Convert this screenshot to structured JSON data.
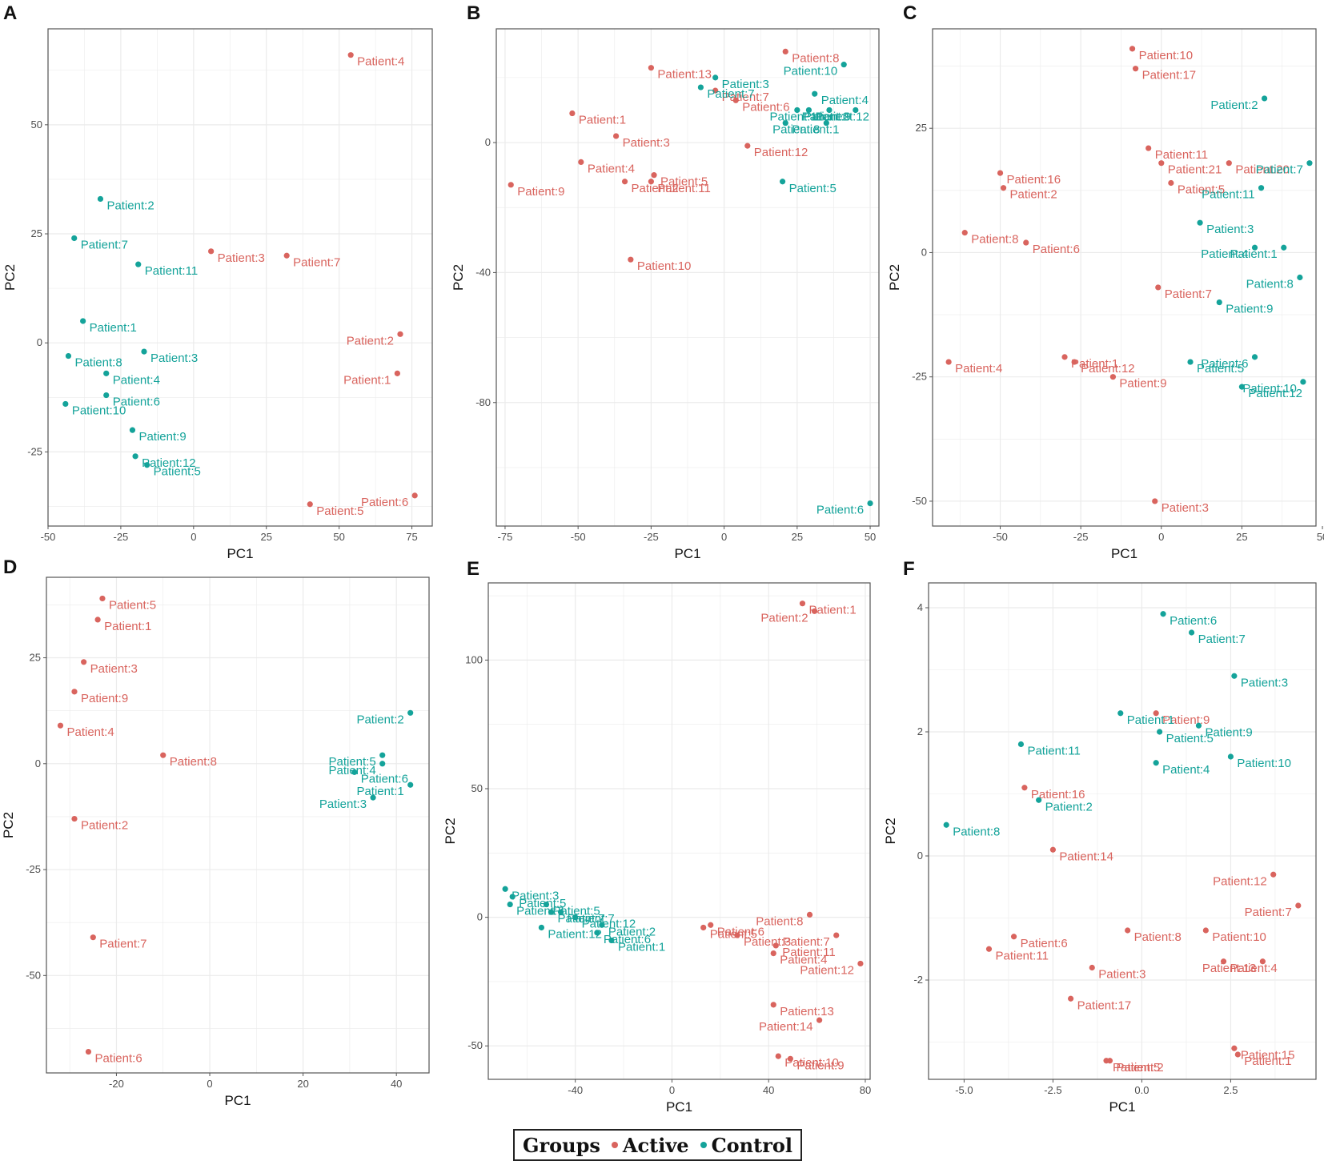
{
  "colors": {
    "active": "#d9645e",
    "control": "#14a39a",
    "grid": "#ebebeb",
    "axis": "#555555"
  },
  "legend": {
    "title": "Groups",
    "active": "Active",
    "control": "Control"
  },
  "chart_data": [
    {
      "panel": "A",
      "type": "scatter",
      "xlabel": "PC1",
      "ylabel": "PC2",
      "xlim": [
        -50,
        82
      ],
      "ylim": [
        -42,
        72
      ],
      "xticks": [
        -50,
        -25,
        0,
        25,
        50,
        75
      ],
      "yticks": [
        -25,
        0,
        25,
        50
      ],
      "points": [
        {
          "label": "Patient:4",
          "group": "active",
          "x": 54,
          "y": 66
        },
        {
          "label": "Patient:3",
          "group": "active",
          "x": 6,
          "y": 21
        },
        {
          "label": "Patient:7",
          "group": "active",
          "x": 32,
          "y": 20
        },
        {
          "label": "Patient:2",
          "group": "active",
          "x": 71,
          "y": 2
        },
        {
          "label": "Patient:1",
          "group": "active",
          "x": 70,
          "y": -7
        },
        {
          "label": "Patient:5",
          "group": "active",
          "x": 40,
          "y": -37
        },
        {
          "label": "Patient:6",
          "group": "active",
          "x": 76,
          "y": -35
        },
        {
          "label": "Patient:2",
          "group": "control",
          "x": -32,
          "y": 33
        },
        {
          "label": "Patient:7",
          "group": "control",
          "x": -41,
          "y": 24
        },
        {
          "label": "Patient:11",
          "group": "control",
          "x": -19,
          "y": 18
        },
        {
          "label": "Patient:1",
          "group": "control",
          "x": -38,
          "y": 5
        },
        {
          "label": "Patient:8",
          "group": "control",
          "x": -43,
          "y": -3
        },
        {
          "label": "Patient:3",
          "group": "control",
          "x": -17,
          "y": -2
        },
        {
          "label": "Patient:4",
          "group": "control",
          "x": -30,
          "y": -7
        },
        {
          "label": "Patient:6",
          "group": "control",
          "x": -30,
          "y": -12
        },
        {
          "label": "Patient:10",
          "group": "control",
          "x": -44,
          "y": -14
        },
        {
          "label": "Patient:9",
          "group": "control",
          "x": -21,
          "y": -20
        },
        {
          "label": "Patient:12",
          "group": "control",
          "x": -20,
          "y": -26
        },
        {
          "label": "Patient:5",
          "group": "control",
          "x": -16,
          "y": -28
        }
      ]
    },
    {
      "panel": "B",
      "type": "scatter",
      "xlabel": "PC1",
      "ylabel": "PC2",
      "xlim": [
        -78,
        53
      ],
      "ylim": [
        -118,
        35
      ],
      "xticks": [
        -75,
        -50,
        -25,
        0,
        25,
        50
      ],
      "yticks": [
        -80,
        -40,
        0
      ],
      "points": [
        {
          "label": "Patient:8",
          "group": "active",
          "x": 21,
          "y": 28
        },
        {
          "label": "Patient:13",
          "group": "active",
          "x": -25,
          "y": 23
        },
        {
          "label": "Patient:7",
          "group": "active",
          "x": -3,
          "y": 16
        },
        {
          "label": "Patient:6",
          "group": "active",
          "x": 4,
          "y": 13
        },
        {
          "label": "Patient:1",
          "group": "active",
          "x": -52,
          "y": 9
        },
        {
          "label": "Patient:3",
          "group": "active",
          "x": -37,
          "y": 2
        },
        {
          "label": "Patient:4",
          "group": "active",
          "x": -49,
          "y": -6
        },
        {
          "label": "Patient:12",
          "group": "active",
          "x": 8,
          "y": -1
        },
        {
          "label": "Patient:5",
          "group": "active",
          "x": -24,
          "y": -10
        },
        {
          "label": "Patient:2",
          "group": "active",
          "x": -34,
          "y": -12
        },
        {
          "label": "Patient:11",
          "group": "active",
          "x": -25,
          "y": -12
        },
        {
          "label": "Patient:9",
          "group": "active",
          "x": -73,
          "y": -13
        },
        {
          "label": "Patient:10",
          "group": "active",
          "x": -32,
          "y": -36
        },
        {
          "label": "Patient:10",
          "group": "control",
          "x": 41,
          "y": 24
        },
        {
          "label": "Patient:3",
          "group": "control",
          "x": -3,
          "y": 20
        },
        {
          "label": "Patient:7",
          "group": "control",
          "x": -8,
          "y": 17
        },
        {
          "label": "Patient:4",
          "group": "control",
          "x": 31,
          "y": 15
        },
        {
          "label": "Patient:2",
          "group": "control",
          "x": 45,
          "y": 10
        },
        {
          "label": "Patient:9",
          "group": "control",
          "x": 25,
          "y": 10
        },
        {
          "label": "Patient:12",
          "group": "control",
          "x": 29,
          "y": 10
        },
        {
          "label": "Patient:11",
          "group": "control",
          "x": 36,
          "y": 10
        },
        {
          "label": "Patient:1",
          "group": "control",
          "x": 21,
          "y": 6
        },
        {
          "label": "Patient:8",
          "group": "control",
          "x": 35,
          "y": 6
        },
        {
          "label": "Patient:5",
          "group": "control",
          "x": 20,
          "y": -12
        },
        {
          "label": "Patient:6",
          "group": "control",
          "x": 50,
          "y": -111
        }
      ]
    },
    {
      "panel": "C",
      "type": "scatter",
      "xlabel": "PC1",
      "ylabel": "PC2",
      "xlim": [
        -71,
        48
      ],
      "ylim": [
        -55,
        45
      ],
      "xticks": [
        -50,
        -25,
        0,
        25,
        50
      ],
      "yticks": [
        -50,
        -25,
        0,
        25
      ],
      "points": [
        {
          "label": "Patient:10",
          "group": "active",
          "x": -9,
          "y": 41
        },
        {
          "label": "Patient:17",
          "group": "active",
          "x": -8,
          "y": 37
        },
        {
          "label": "Patient:11",
          "group": "active",
          "x": -4,
          "y": 21
        },
        {
          "label": "Patient:21",
          "group": "active",
          "x": 0,
          "y": 18
        },
        {
          "label": "Patient:20",
          "group": "active",
          "x": 21,
          "y": 18
        },
        {
          "label": "Patient:16",
          "group": "active",
          "x": -50,
          "y": 16
        },
        {
          "label": "Patient:5",
          "group": "active",
          "x": 3,
          "y": 14
        },
        {
          "label": "Patient:2",
          "group": "active",
          "x": -49,
          "y": 13
        },
        {
          "label": "Patient:8",
          "group": "active",
          "x": -61,
          "y": 4
        },
        {
          "label": "Patient:6",
          "group": "active",
          "x": -42,
          "y": 2
        },
        {
          "label": "Patient:7",
          "group": "active",
          "x": -1,
          "y": -7
        },
        {
          "label": "Patient:1",
          "group": "active",
          "x": -30,
          "y": -21
        },
        {
          "label": "Patient:4",
          "group": "active",
          "x": -66,
          "y": -22
        },
        {
          "label": "Patient:12",
          "group": "active",
          "x": -27,
          "y": -22
        },
        {
          "label": "Patient:9",
          "group": "active",
          "x": -15,
          "y": -25
        },
        {
          "label": "Patient:3",
          "group": "active",
          "x": -2,
          "y": -50
        },
        {
          "label": "Patient:2",
          "group": "control",
          "x": 32,
          "y": 31
        },
        {
          "label": "Patient:7",
          "group": "control",
          "x": 46,
          "y": 18
        },
        {
          "label": "Patient:11",
          "group": "control",
          "x": 31,
          "y": 13
        },
        {
          "label": "Patient:3",
          "group": "control",
          "x": 12,
          "y": 6
        },
        {
          "label": "Patient:4",
          "group": "control",
          "x": 29,
          "y": 1
        },
        {
          "label": "Patient:1",
          "group": "control",
          "x": 38,
          "y": 1
        },
        {
          "label": "Patient:8",
          "group": "control",
          "x": 43,
          "y": -5
        },
        {
          "label": "Patient:9",
          "group": "control",
          "x": 18,
          "y": -10
        },
        {
          "label": "Patient:6",
          "group": "control",
          "x": 29,
          "y": -21
        },
        {
          "label": "Patient:5",
          "group": "control",
          "x": 9,
          "y": -22
        },
        {
          "label": "Patient:10",
          "group": "control",
          "x": 44,
          "y": -26
        },
        {
          "label": "Patient:12",
          "group": "control",
          "x": 25,
          "y": -27
        }
      ]
    },
    {
      "panel": "D",
      "type": "scatter",
      "xlabel": "PC1",
      "ylabel": "PC2",
      "xlim": [
        -35,
        47
      ],
      "ylim": [
        -73,
        44
      ],
      "xticks": [
        -20,
        0,
        20,
        40
      ],
      "yticks": [
        -50,
        -25,
        0,
        25
      ],
      "points": [
        {
          "label": "Patient:5",
          "group": "active",
          "x": -23,
          "y": 39
        },
        {
          "label": "Patient:1",
          "group": "active",
          "x": -24,
          "y": 34
        },
        {
          "label": "Patient:3",
          "group": "active",
          "x": -27,
          "y": 24
        },
        {
          "label": "Patient:9",
          "group": "active",
          "x": -29,
          "y": 17
        },
        {
          "label": "Patient:4",
          "group": "active",
          "x": -32,
          "y": 9
        },
        {
          "label": "Patient:8",
          "group": "active",
          "x": -10,
          "y": 2
        },
        {
          "label": "Patient:2",
          "group": "active",
          "x": -29,
          "y": -13
        },
        {
          "label": "Patient:7",
          "group": "active",
          "x": -25,
          "y": -41
        },
        {
          "label": "Patient:6",
          "group": "active",
          "x": -26,
          "y": -68
        },
        {
          "label": "Patient:2",
          "group": "control",
          "x": 43,
          "y": 12
        },
        {
          "label": "Patient:5",
          "group": "control",
          "x": 37,
          "y": 2
        },
        {
          "label": "Patient:4",
          "group": "control",
          "x": 37,
          "y": 0
        },
        {
          "label": "Patient:6",
          "group": "control",
          "x": 31,
          "y": -2
        },
        {
          "label": "Patient:1",
          "group": "control",
          "x": 43,
          "y": -5
        },
        {
          "label": "Patient:3",
          "group": "control",
          "x": 35,
          "y": -8
        }
      ]
    },
    {
      "panel": "E",
      "type": "scatter",
      "xlabel": "PC1",
      "ylabel": "PC2",
      "xlim": [
        -76,
        82
      ],
      "ylim": [
        -63,
        130
      ],
      "xticks": [
        -40,
        0,
        40,
        80
      ],
      "yticks": [
        -50,
        0,
        50,
        100
      ],
      "points": [
        {
          "label": "Patient:1",
          "group": "active",
          "x": 54,
          "y": 122
        },
        {
          "label": "Patient:2",
          "group": "active",
          "x": 59,
          "y": 119
        },
        {
          "label": "Patient:8",
          "group": "active",
          "x": 57,
          "y": 1
        },
        {
          "label": "Patient:7",
          "group": "active",
          "x": 68,
          "y": -7
        },
        {
          "label": "Patient:6",
          "group": "active",
          "x": 16,
          "y": -3
        },
        {
          "label": "Patient:5",
          "group": "active",
          "x": 13,
          "y": -4
        },
        {
          "label": "Patient:3",
          "group": "active",
          "x": 27,
          "y": -7
        },
        {
          "label": "Patient:11",
          "group": "active",
          "x": 43,
          "y": -11
        },
        {
          "label": "Patient:4",
          "group": "active",
          "x": 42,
          "y": -14
        },
        {
          "label": "Patient:12",
          "group": "active",
          "x": 78,
          "y": -18
        },
        {
          "label": "Patient:14",
          "group": "active",
          "x": 61,
          "y": -40
        },
        {
          "label": "Patient:13",
          "group": "active",
          "x": 42,
          "y": -34
        },
        {
          "label": "Patient:10",
          "group": "active",
          "x": 44,
          "y": -54
        },
        {
          "label": "Patient:9",
          "group": "active",
          "x": 49,
          "y": -55
        },
        {
          "label": "Patient:3",
          "group": "control",
          "x": -69,
          "y": 11
        },
        {
          "label": "Patient:5",
          "group": "control",
          "x": -66,
          "y": 8
        },
        {
          "label": "Patient:7",
          "group": "control",
          "x": -67,
          "y": 5
        },
        {
          "label": "Patient:5",
          "group": "control",
          "x": -52,
          "y": 5
        },
        {
          "label": "Patient:7",
          "group": "control",
          "x": -46,
          "y": 2
        },
        {
          "label": "Patient:7",
          "group": "control",
          "x": -50,
          "y": 2
        },
        {
          "label": "Patient:12",
          "group": "control",
          "x": -40,
          "y": 0
        },
        {
          "label": "Patient:12",
          "group": "control",
          "x": -54,
          "y": -4
        },
        {
          "label": "Patient:2",
          "group": "control",
          "x": -29,
          "y": -3
        },
        {
          "label": "Patient:6",
          "group": "control",
          "x": -31,
          "y": -6
        },
        {
          "label": "Patient:1",
          "group": "control",
          "x": -25,
          "y": -9
        }
      ]
    },
    {
      "panel": "F",
      "type": "scatter",
      "xlabel": "PC1",
      "ylabel": "PC2",
      "xlim": [
        -6,
        4.9
      ],
      "ylim": [
        -3.6,
        4.4
      ],
      "xticks": [
        -5.0,
        -2.5,
        0.0,
        2.5
      ],
      "yticks": [
        -2,
        0,
        2,
        4
      ],
      "points": [
        {
          "label": "Patient:9",
          "group": "active",
          "x": 0.4,
          "y": 2.3
        },
        {
          "label": "Patient:16",
          "group": "active",
          "x": -3.3,
          "y": 1.1
        },
        {
          "label": "Patient:14",
          "group": "active",
          "x": -2.5,
          "y": 0.1
        },
        {
          "label": "Patient:12",
          "group": "active",
          "x": 3.7,
          "y": -0.3
        },
        {
          "label": "Patient:7",
          "group": "active",
          "x": 4.4,
          "y": -0.8
        },
        {
          "label": "Patient:6",
          "group": "active",
          "x": -3.6,
          "y": -1.3
        },
        {
          "label": "Patient:8",
          "group": "active",
          "x": -0.4,
          "y": -1.2
        },
        {
          "label": "Patient:10",
          "group": "active",
          "x": 1.8,
          "y": -1.2
        },
        {
          "label": "Patient:11",
          "group": "active",
          "x": -4.3,
          "y": -1.5
        },
        {
          "label": "Patient:3",
          "group": "active",
          "x": -1.4,
          "y": -1.8
        },
        {
          "label": "Patient:4",
          "group": "active",
          "x": 2.3,
          "y": -1.7
        },
        {
          "label": "Patient:13",
          "group": "active",
          "x": 3.4,
          "y": -1.7
        },
        {
          "label": "Patient:17",
          "group": "active",
          "x": -2.0,
          "y": -2.3
        },
        {
          "label": "Patient:15",
          "group": "active",
          "x": 2.6,
          "y": -3.1
        },
        {
          "label": "Patient:1",
          "group": "active",
          "x": 2.7,
          "y": -3.2
        },
        {
          "label": "Patient:5",
          "group": "active",
          "x": -1.0,
          "y": -3.3
        },
        {
          "label": "Patient:2",
          "group": "active",
          "x": -0.9,
          "y": -3.3
        },
        {
          "label": "Patient:6",
          "group": "control",
          "x": 0.6,
          "y": 3.9
        },
        {
          "label": "Patient:7",
          "group": "control",
          "x": 1.4,
          "y": 3.6
        },
        {
          "label": "Patient:3",
          "group": "control",
          "x": 2.6,
          "y": 2.9
        },
        {
          "label": "Patient:9",
          "group": "control",
          "x": 1.6,
          "y": 2.1
        },
        {
          "label": "Patient:1",
          "group": "control",
          "x": -0.6,
          "y": 2.3
        },
        {
          "label": "Patient:5",
          "group": "control",
          "x": 0.5,
          "y": 2.0
        },
        {
          "label": "Patient:11",
          "group": "control",
          "x": -3.4,
          "y": 1.8
        },
        {
          "label": "Patient:10",
          "group": "control",
          "x": 2.5,
          "y": 1.6
        },
        {
          "label": "Patient:4",
          "group": "control",
          "x": 0.4,
          "y": 1.5
        },
        {
          "label": "Patient:2",
          "group": "control",
          "x": -2.9,
          "y": 0.9
        },
        {
          "label": "Patient:8",
          "group": "control",
          "x": -5.5,
          "y": 0.5
        }
      ]
    }
  ]
}
